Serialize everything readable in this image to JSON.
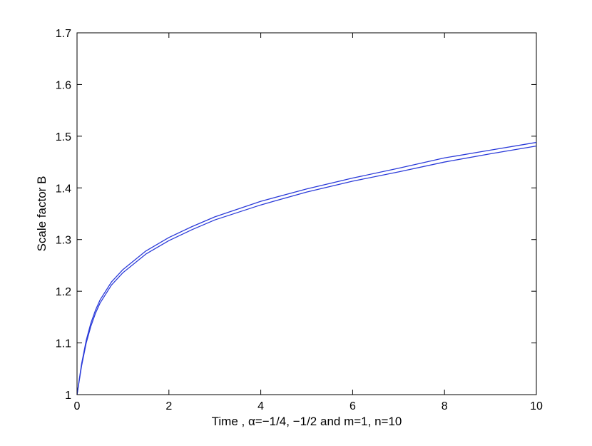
{
  "chart_data": {
    "type": "line",
    "title": "",
    "xlabel": "Time , α=−1/4, −1/2 and m=1, n=10",
    "ylabel": "Scale factor B",
    "xlim": [
      0,
      10
    ],
    "ylim": [
      1,
      1.7
    ],
    "x_ticks": [
      "0",
      "2",
      "4",
      "6",
      "8",
      "10"
    ],
    "y_ticks": [
      "1",
      "1.1",
      "1.2",
      "1.3",
      "1.4",
      "1.5",
      "1.6",
      "1.7"
    ],
    "grid": false,
    "legend": "none",
    "line_color": "#2b3bd9",
    "x": [
      0,
      0.05,
      0.1,
      0.2,
      0.3,
      0.4,
      0.5,
      0.75,
      1,
      1.5,
      2,
      2.5,
      3,
      4,
      5,
      6,
      7,
      8,
      9,
      10
    ],
    "series": [
      {
        "values": [
          1.0,
          1.03,
          1.06,
          1.105,
          1.138,
          1.163,
          1.183,
          1.218,
          1.242,
          1.278,
          1.304,
          1.325,
          1.344,
          1.374,
          1.398,
          1.419,
          1.438,
          1.458,
          1.473,
          1.488
        ]
      },
      {
        "values": [
          1.0,
          1.028,
          1.056,
          1.1,
          1.132,
          1.157,
          1.177,
          1.212,
          1.236,
          1.272,
          1.298,
          1.319,
          1.338,
          1.367,
          1.392,
          1.413,
          1.431,
          1.45,
          1.466,
          1.481
        ]
      }
    ]
  }
}
